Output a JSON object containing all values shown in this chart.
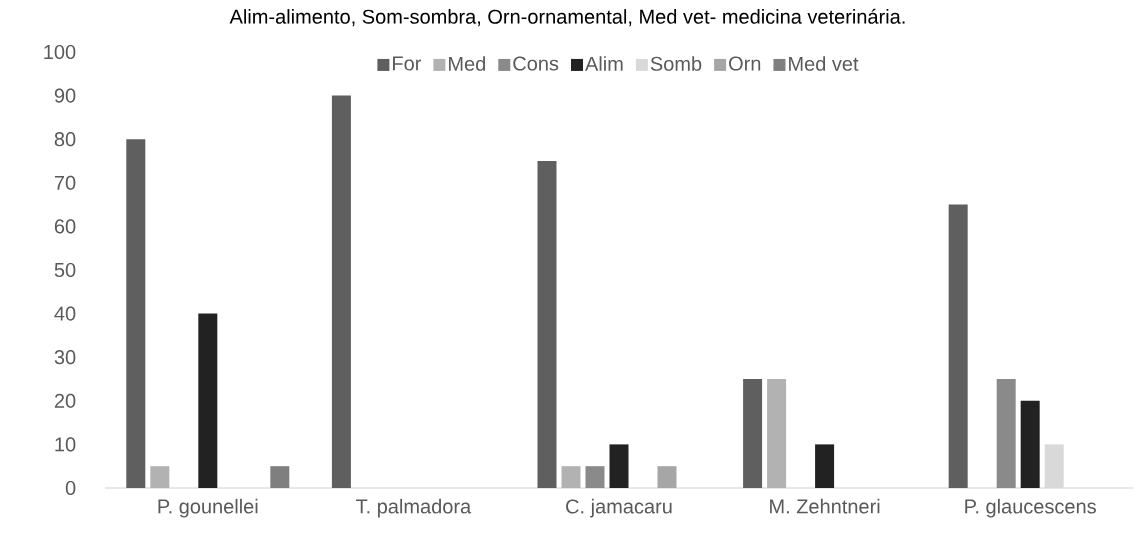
{
  "chart_data": {
    "type": "bar",
    "annotations": [
      "Alim-alimento, Som-sombra, Orn-ornamental, Med vet- medicina veterinária."
    ],
    "categories": [
      "P. gounellei",
      "T. palmadora",
      "C. jamacaru",
      "M. Zehntneri",
      "P. glaucescens"
    ],
    "series": [
      {
        "name": "For",
        "color": "#5f5f5f",
        "values": [
          80,
          90,
          75,
          25,
          65
        ]
      },
      {
        "name": "Med",
        "color": "#b2b2b2",
        "values": [
          5,
          0,
          5,
          25,
          0
        ]
      },
      {
        "name": "Cons",
        "color": "#8a8a8a",
        "values": [
          0,
          0,
          5,
          0,
          25
        ]
      },
      {
        "name": "Alim",
        "color": "#222222",
        "values": [
          40,
          0,
          10,
          10,
          20
        ]
      },
      {
        "name": "Somb",
        "color": "#d9d9d9",
        "values": [
          0,
          0,
          0,
          0,
          10
        ]
      },
      {
        "name": "Orn",
        "color": "#a6a6a6",
        "values": [
          0,
          0,
          5,
          0,
          0
        ]
      },
      {
        "name": "Med vet",
        "color": "#7f7f7f",
        "values": [
          5,
          0,
          0,
          0,
          0
        ]
      }
    ],
    "ylim": [
      0,
      100
    ],
    "yticks": [
      0,
      10,
      20,
      30,
      40,
      50,
      60,
      70,
      80,
      90,
      100
    ],
    "grid": false,
    "legend": "top"
  }
}
